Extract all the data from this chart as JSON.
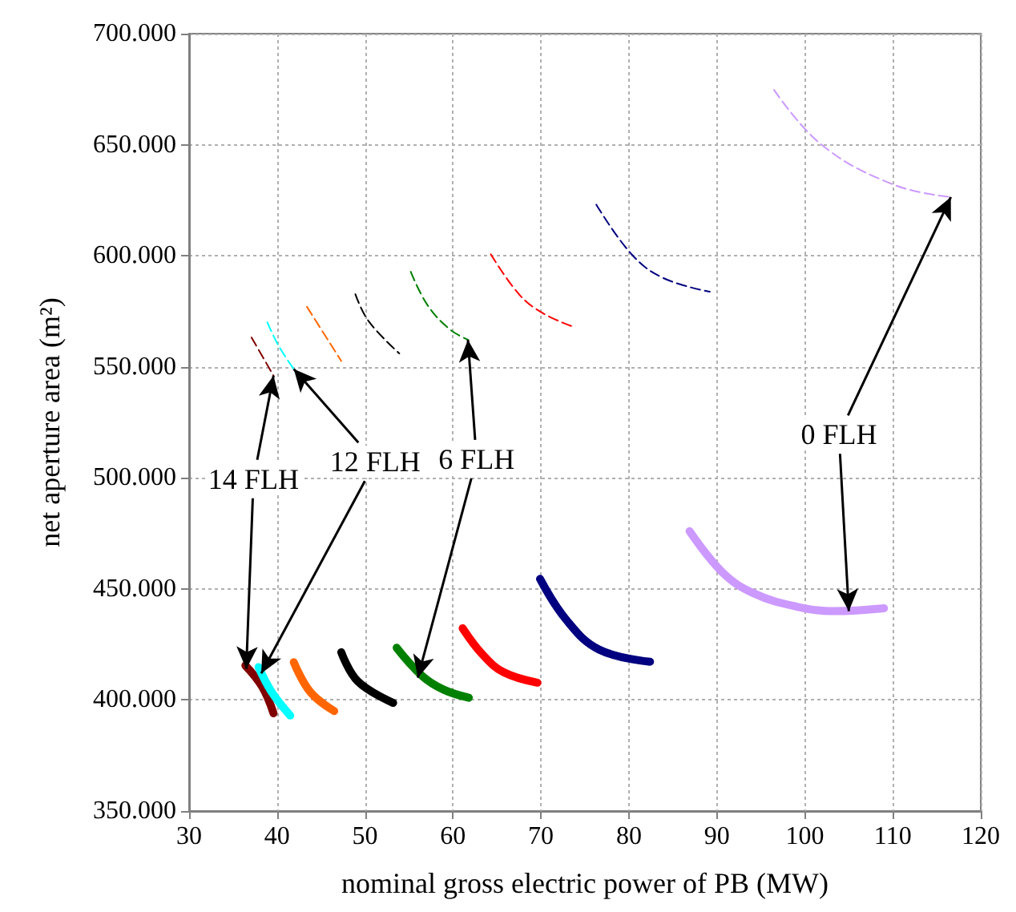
{
  "chart_data": {
    "type": "line",
    "xlabel": "nominal gross electric power of PB (MW)",
    "ylabel": "net aperture area (m²)",
    "xlim": [
      30,
      120
    ],
    "xticks": [
      30,
      40,
      50,
      60,
      70,
      80,
      90,
      100,
      110,
      120
    ],
    "ylim": [
      350000,
      700000
    ],
    "yticks": [
      {
        "value": 350000,
        "label": "350.000"
      },
      {
        "value": 400000,
        "label": "400.000"
      },
      {
        "value": 450000,
        "label": "450.000"
      },
      {
        "value": 500000,
        "label": "500.000"
      },
      {
        "value": 550000,
        "label": "550.000"
      },
      {
        "value": 600000,
        "label": "600.000"
      },
      {
        "value": 650000,
        "label": "650.000"
      },
      {
        "value": 700000,
        "label": "700.000"
      }
    ],
    "grid": true,
    "marker": "none",
    "series": [
      {
        "color": "#800000",
        "line_style": "solid",
        "x": [
          36.4,
          38.3,
          39.6
        ],
        "values": [
          415500,
          406000,
          394000
        ]
      },
      {
        "color": "#00ffff",
        "line_style": "solid",
        "x": [
          37.9,
          39.4,
          41.5
        ],
        "values": [
          414800,
          403500,
          393000
        ]
      },
      {
        "color": "#ff6600",
        "line_style": "solid",
        "x": [
          41.9,
          43.8,
          46.5
        ],
        "values": [
          417000,
          403500,
          395000
        ]
      },
      {
        "color": "#000000",
        "line_style": "solid",
        "x": [
          47.3,
          49.2,
          53.2
        ],
        "values": [
          421500,
          408300,
          398700
        ]
      },
      {
        "color": "#008000",
        "line_style": "solid",
        "x": [
          53.6,
          56.5,
          58.9,
          61.8
        ],
        "values": [
          423500,
          410800,
          404700,
          401000
        ]
      },
      {
        "color": "#ff0000",
        "line_style": "solid",
        "x": [
          61.1,
          63.4,
          65.8,
          69.6
        ],
        "values": [
          432300,
          420300,
          412400,
          407800
        ]
      },
      {
        "color": "#000080",
        "line_style": "solid",
        "x": [
          69.9,
          72.9,
          76.6,
          82.4
        ],
        "values": [
          454500,
          436000,
          422700,
          417200
        ]
      },
      {
        "color": "#cc99ff",
        "line_style": "solid",
        "x": [
          86.9,
          90.6,
          94.2,
          99.1,
          103.4,
          109
        ],
        "values": [
          476000,
          457600,
          448000,
          442000,
          440000,
          441300
        ]
      },
      {
        "color": "#800000",
        "line_style": "dashed",
        "x": [
          37.1,
          39.6
        ],
        "values": [
          563200,
          546000
        ]
      },
      {
        "color": "#00ffff",
        "line_style": "dashed",
        "x": [
          38.9,
          40.1,
          41.9
        ],
        "values": [
          570000,
          560000,
          549000
        ]
      },
      {
        "color": "#ff6600",
        "line_style": "dashed",
        "x": [
          43.4,
          47.3
        ],
        "values": [
          577000,
          552600
        ]
      },
      {
        "color": "#000000",
        "line_style": "dashed",
        "x": [
          48.9,
          50.4,
          53.9
        ],
        "values": [
          582700,
          570600,
          556000
        ]
      },
      {
        "color": "#008000",
        "line_style": "dashed",
        "x": [
          55.2,
          57.1,
          59.6,
          61.7
        ],
        "values": [
          592800,
          577800,
          567000,
          562200
        ]
      },
      {
        "color": "#ff0000",
        "line_style": "dashed",
        "x": [
          64.3,
          67.5,
          70.2,
          73.7
        ],
        "values": [
          600700,
          582700,
          574200,
          568000
        ]
      },
      {
        "color": "#000080",
        "line_style": "dashed",
        "x": [
          76.3,
          80.3,
          83.9,
          89.2
        ],
        "values": [
          623000,
          600700,
          590000,
          583800
        ]
      },
      {
        "color": "#cc99ff",
        "line_style": "dashed",
        "x": [
          96.5,
          101.9,
          110.1,
          116.6
        ],
        "values": [
          674700,
          650000,
          632000,
          626400
        ]
      }
    ],
    "annotations": [
      {
        "text": "14 FLH",
        "x": 36.5,
        "y": 414000
      },
      {
        "text": "12 FLH",
        "x": 38.2,
        "y": 412000
      },
      {
        "text": "6 FLH",
        "x": 56,
        "y": 410000
      },
      {
        "text": "0 FLH",
        "x": 105,
        "y": 440000
      }
    ]
  }
}
